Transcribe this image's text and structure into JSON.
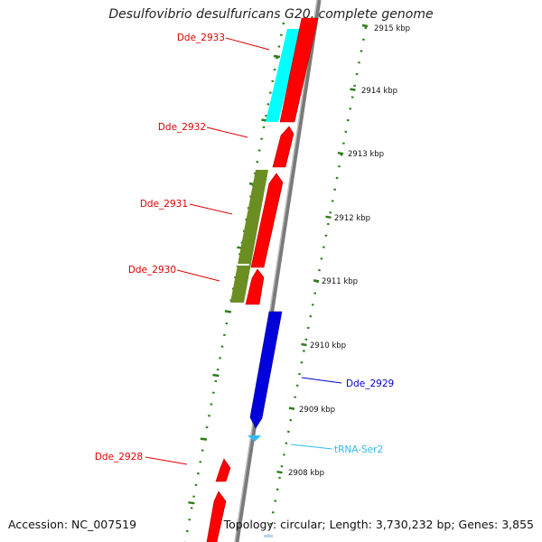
{
  "title": "Desulfovibrio desulfuricans G20, complete genome",
  "footer": {
    "accession": "Accession: NC_007519",
    "summary": "Topology: circular; Length: 3,730,232 bp; Genes: 3,855"
  },
  "scale_ticks": [
    "2915 kbp",
    "2914 kbp",
    "2913 kbp",
    "2912 kbp",
    "2911 kbp",
    "2910 kbp",
    "2909 kbp",
    "2908 kbp"
  ],
  "features": [
    {
      "label": "Dde_2933",
      "color": "#ff0000"
    },
    {
      "label": "Dde_2932",
      "color": "#ff0000"
    },
    {
      "label": "Dde_2931",
      "color": "#ff0000"
    },
    {
      "label": "Dde_2930",
      "color": "#ff0000"
    },
    {
      "label": "Dde_2929",
      "color": "#0000cc"
    },
    {
      "label": "tRNA-Ser2",
      "color": "#33bbee"
    },
    {
      "label": "Dde_2928",
      "color": "#ff0000"
    }
  ],
  "colors": {
    "backbone": "#888888",
    "cds_forward": "#ff0000",
    "cyan_block": "#00ffff",
    "olive_block": "#6b8e23",
    "cds_reverse": "#0000dd",
    "trna": "#33bbee",
    "tick_marks": "#2e7d1a"
  }
}
